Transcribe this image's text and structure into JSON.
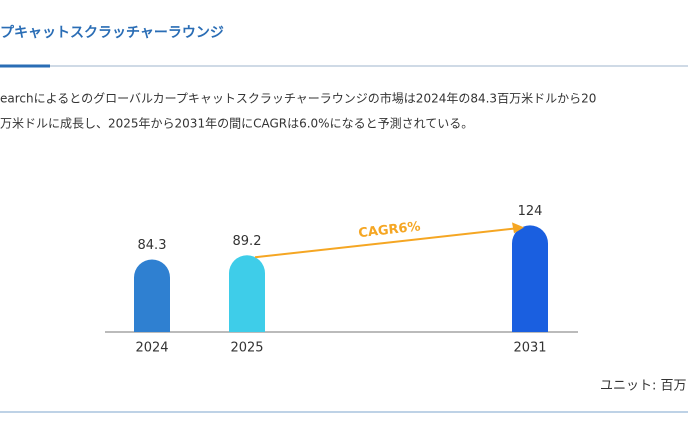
{
  "header": {
    "title": "プキャットスクラッチャーラウンジ"
  },
  "paragraph": [
    "earchによるとのグローバルカープキャットスクラッチャーラウンジの市場は2024年の84.3百万米ドルから20",
    "万米ドルに成長し、2025年から2031年の間にCAGRは6.0%になると予測されている。"
  ],
  "unit": "ユニット: 百万",
  "chart_data": {
    "type": "bar",
    "categories": [
      "2024",
      "2025",
      "2031"
    ],
    "values": [
      84.3,
      89.2,
      124
    ],
    "colors": [
      "#2f80d1",
      "#3ecde9",
      "#1a5fe0"
    ],
    "annotation": "CAGR6%",
    "annotation_color": "#f5a623"
  }
}
